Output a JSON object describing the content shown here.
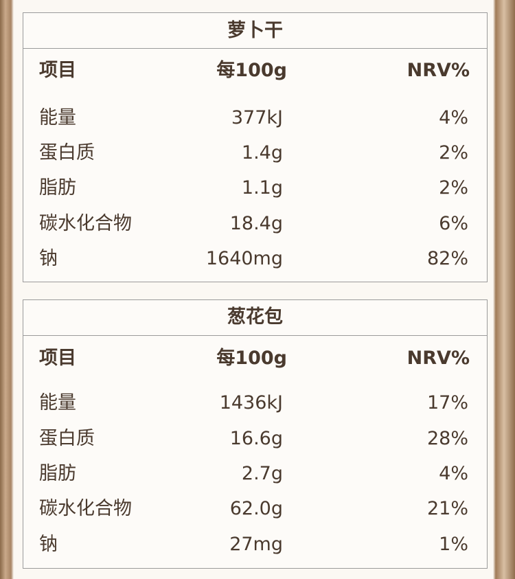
{
  "tables": [
    {
      "title": "萝卜干",
      "header": [
        "项目",
        "每100g",
        "NRV%"
      ],
      "rows": [
        [
          "能量",
          "377kJ",
          "4%"
        ],
        [
          "蛋白质",
          "1.4g",
          "2%"
        ],
        [
          "脂肪",
          "1.1g",
          "2%"
        ],
        [
          "碳水化合物",
          "18.4g",
          "6%"
        ],
        [
          "钠",
          "1640mg",
          "82%"
        ]
      ]
    },
    {
      "title": "葱花包",
      "header": [
        "项目",
        "每100g",
        "NRV%"
      ],
      "rows": [
        [
          "能量",
          "1436kJ",
          "17%"
        ],
        [
          "蛋白质",
          "16.6g",
          "28%"
        ],
        [
          "脂肪",
          "2.7g",
          "4%"
        ],
        [
          "碳水化合物",
          "62.0g",
          "21%"
        ],
        [
          "钠",
          "27mg",
          "1%"
        ]
      ]
    }
  ]
}
